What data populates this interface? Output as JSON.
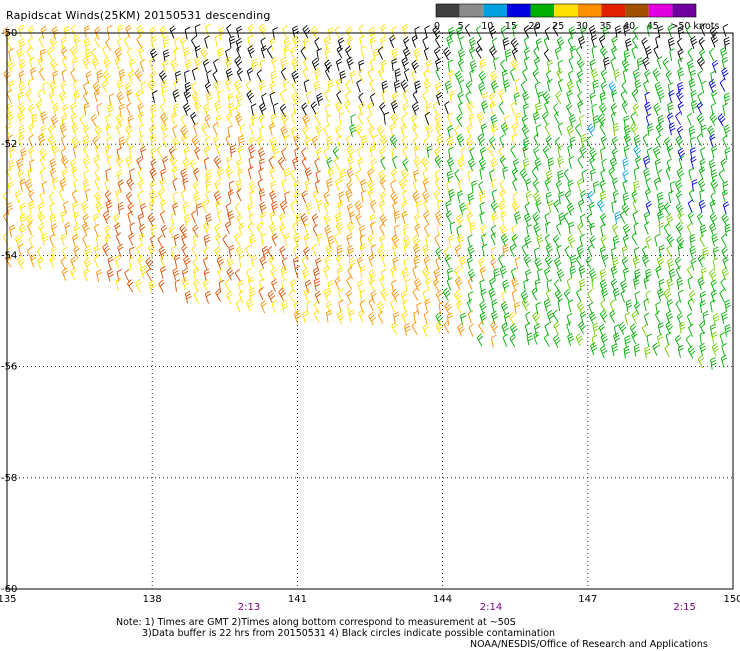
{
  "header": {
    "title": "Rapidscat Winds(25KM) 20150531 descending"
  },
  "legend": {
    "labels": [
      "0",
      "5",
      "10",
      "15",
      "20",
      "25",
      "30",
      "35",
      "40",
      "45",
      ">50 knots"
    ],
    "colors": [
      "#404040",
      "#8c8c8c",
      "#00a0e0",
      "#0000e0",
      "#00b000",
      "#ffe000",
      "#ff9000",
      "#e02000",
      "#a05000",
      "#e000e0",
      "#7000a0"
    ]
  },
  "chart_data": {
    "type": "scatter",
    "title": "Rapidscat Winds(25KM) 20150531 descending",
    "xlim": [
      135,
      150
    ],
    "ylim": [
      -60,
      -50
    ],
    "x_ticks": [
      "135",
      "138",
      "141",
      "144",
      "147",
      "150"
    ],
    "y_ticks": [
      "-50",
      "-52",
      "-54",
      "-56",
      "-58",
      "-60"
    ],
    "time_labels": [
      {
        "lon": 140.0,
        "text": "2:13"
      },
      {
        "lon": 145.0,
        "text": "2:14"
      },
      {
        "lon": 149.0,
        "text": "2:15"
      }
    ],
    "grid": true
  },
  "footer": {
    "note1": "Note: 1) Times are GMT 2)Times along bottom correspond to measurement at ~50S",
    "note2": "3)Data buffer is 22 hrs from 20150531 4) Black circles indicate possible contamination",
    "credit": "NOAA/NESDIS/Office of Research and Applications"
  }
}
